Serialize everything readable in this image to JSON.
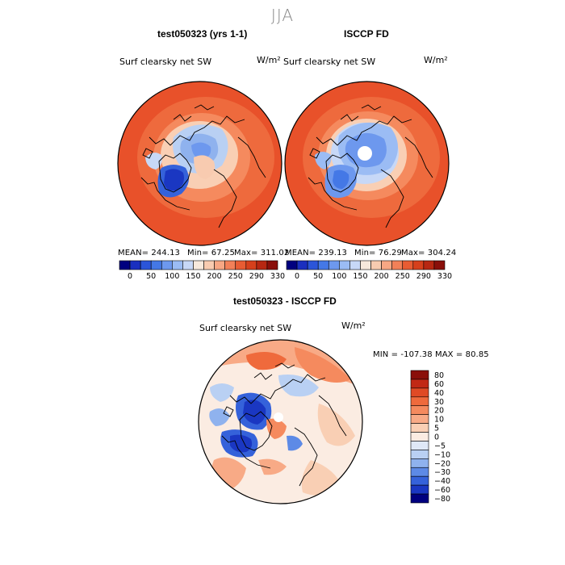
{
  "season": "JJA",
  "panels": [
    {
      "title": "test050323 (yrs 1-1)",
      "field": "Surf clearsky net SW",
      "unit": "W/m²",
      "stats": {
        "mean": "MEAN= 244.13",
        "min": "Min=  67.25",
        "max": "Max= 311.02"
      }
    },
    {
      "title": "ISCCP FD",
      "field": "Surf clearsky net SW",
      "unit": "W/m²",
      "stats": {
        "mean": "MEAN= 239.13",
        "min": "Min=  76.29",
        "max": "Max= 304.24"
      }
    }
  ],
  "diff": {
    "title": "test050323 - ISCCP FD",
    "field": "Surf clearsky net SW",
    "unit": "W/m²",
    "minmax": "MIN = -107.38  MAX =  80.85"
  },
  "chart_data": [
    {
      "type": "heatmap",
      "title": "test050323 (yrs 1-1)",
      "projection": "north polar stereographic",
      "colorbar": {
        "orientation": "horizontal",
        "tick_labels": [
          "0",
          "50",
          "100",
          "150",
          "200",
          "250",
          "290",
          "330"
        ],
        "colors": [
          "#00007f",
          "#1a2fbf",
          "#2b55d9",
          "#4478e6",
          "#6d98ee",
          "#9bbcf4",
          "#c7d8f7",
          "#f7e9dc",
          "#f8cbb0",
          "#f7a784",
          "#f28058",
          "#e85c33",
          "#d6401c",
          "#b72712",
          "#8a0f0a"
        ]
      },
      "stats": {
        "mean": 244.13,
        "min": 67.25,
        "max": 311.02
      }
    },
    {
      "type": "heatmap",
      "title": "ISCCP FD",
      "projection": "north polar stereographic",
      "colorbar": {
        "orientation": "horizontal",
        "tick_labels": [
          "0",
          "50",
          "100",
          "150",
          "200",
          "250",
          "290",
          "330"
        ],
        "colors": [
          "#00007f",
          "#1a2fbf",
          "#2b55d9",
          "#4478e6",
          "#6d98ee",
          "#9bbcf4",
          "#c7d8f7",
          "#f7e9dc",
          "#f8cbb0",
          "#f7a784",
          "#f28058",
          "#e85c33",
          "#d6401c",
          "#b72712",
          "#8a0f0a"
        ]
      },
      "stats": {
        "mean": 239.13,
        "min": 76.29,
        "max": 304.24
      }
    },
    {
      "type": "heatmap",
      "title": "test050323 - ISCCP FD",
      "projection": "north polar stereographic",
      "colorbar": {
        "orientation": "vertical",
        "levels": [
          "80",
          "60",
          "40",
          "30",
          "20",
          "10",
          "5",
          "0",
          "−5",
          "−10",
          "−20",
          "−30",
          "−40",
          "−60",
          "−80"
        ],
        "colors": [
          "#8a0f0a",
          "#c12815",
          "#e04a25",
          "#ef6a3c",
          "#f58a5e",
          "#f8aa86",
          "#f9cfb4",
          "#fbece2",
          "#dfe8f7",
          "#b9d0f3",
          "#8fb2ee",
          "#5d8ae6",
          "#3562da",
          "#1a37c2",
          "#00007f"
        ]
      },
      "stats": {
        "min": -107.38,
        "max": 80.85
      }
    }
  ]
}
